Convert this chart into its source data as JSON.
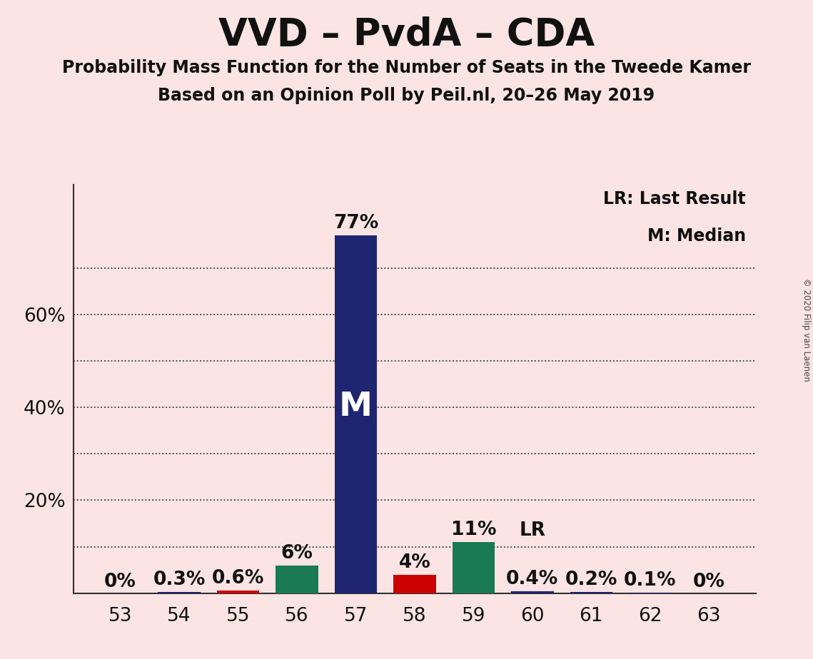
{
  "title": "VVD – PvdA – CDA",
  "subtitle1": "Probability Mass Function for the Number of Seats in the Tweede Kamer",
  "subtitle2": "Based on an Opinion Poll by Peil.nl, 20–26 May 2019",
  "copyright": "© 2020 Filip van Laenen",
  "x_values": [
    53,
    54,
    55,
    56,
    57,
    58,
    59,
    60,
    61,
    62,
    63
  ],
  "y_values": [
    0.0,
    0.3,
    0.6,
    6.0,
    77.0,
    4.0,
    11.0,
    0.4,
    0.2,
    0.1,
    0.0
  ],
  "y_labels": [
    "0%",
    "0.3%",
    "0.6%",
    "6%",
    "77%",
    "4%",
    "11%",
    "0.4%",
    "0.2%",
    "0.1%",
    "0%"
  ],
  "bar_colors": [
    "#1f2570",
    "#1f2570",
    "#cc0000",
    "#1a7a52",
    "#1f2570",
    "#cc0000",
    "#1a7a52",
    "#1f2570",
    "#1f2570",
    "#1f2570",
    "#1f2570"
  ],
  "median_bar": 57,
  "lr_bar": 60,
  "background_color": "#fce4e4",
  "grid_color": "#333333",
  "yticks": [
    20,
    40,
    60
  ],
  "ylim": [
    0,
    88
  ],
  "legend_lr": "LR: Last Result",
  "legend_m": "M: Median",
  "title_fontsize": 38,
  "subtitle_fontsize": 17,
  "label_fontsize": 19,
  "tick_fontsize": 19,
  "bar_width": 0.72
}
